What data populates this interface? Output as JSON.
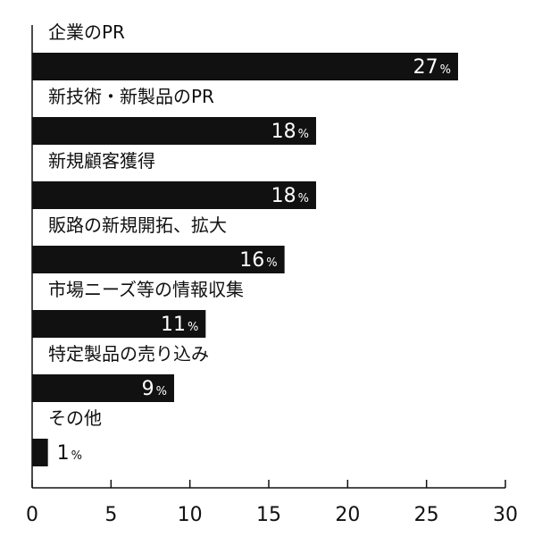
{
  "chart_data": {
    "type": "bar",
    "orientation": "horizontal",
    "categories": [
      "企業のPR",
      "新技術・新製品のPR",
      "新規顧客獲得",
      "販路の新規開拓、拡大",
      "市場ニーズ等の情報収集",
      "特定製品の売り込み",
      "その他"
    ],
    "values": [
      27,
      18,
      18,
      16,
      11,
      9,
      1
    ],
    "value_suffix": "%",
    "xlim": [
      0,
      30
    ],
    "xticks": [
      0,
      5,
      10,
      15,
      20,
      25,
      30
    ],
    "grid": false,
    "colors": {
      "bar": "#111111",
      "label_inside": "#ffffff",
      "label_outside": "#111111",
      "axis": "#111111"
    }
  }
}
